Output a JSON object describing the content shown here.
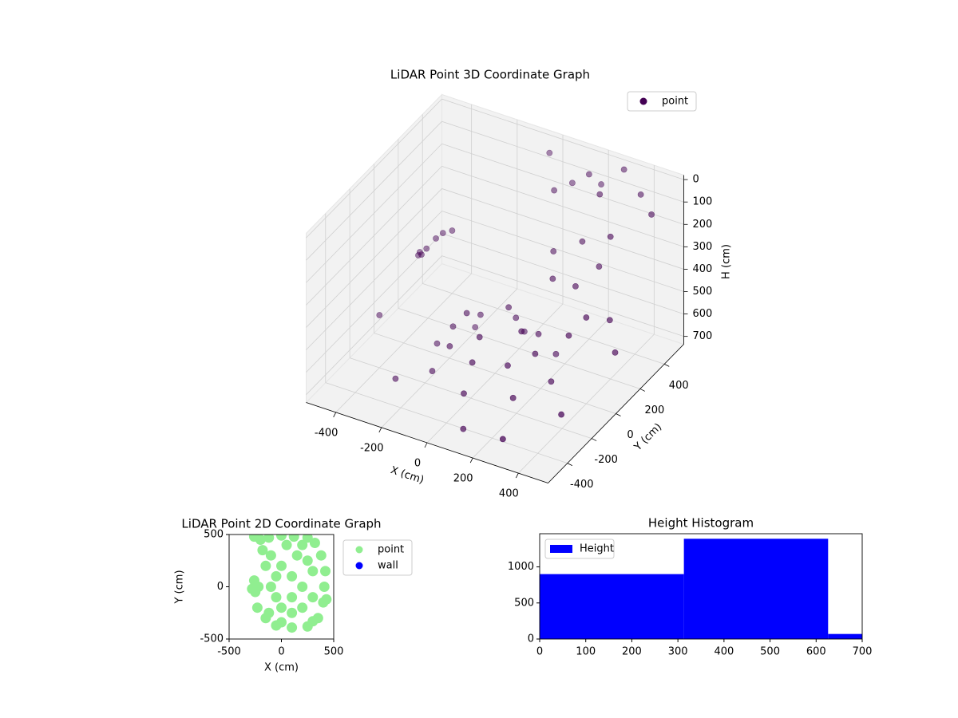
{
  "chart_data": [
    {
      "type": "scatter3d",
      "title": "LiDAR Point 3D Coordinate Graph",
      "xlabel": "X (cm)",
      "ylabel": "Y (cm)",
      "zlabel": "H (cm)",
      "xlim": [
        -530,
        530
      ],
      "ylim": [
        -560,
        560
      ],
      "zlim": [
        -20,
        735
      ],
      "z_inverted": true,
      "xticks": [
        -400,
        -200,
        0,
        200,
        400
      ],
      "yticks": [
        -400,
        -200,
        0,
        200,
        400
      ],
      "zticks": [
        0,
        100,
        200,
        300,
        400,
        500,
        600,
        700
      ],
      "grid": true,
      "legend": "upper right",
      "series": [
        {
          "name": "point",
          "color": "#440154",
          "x": [
            200,
            0,
            300,
            400,
            100,
            200,
            400,
            300,
            100,
            500,
            310,
            237,
            60,
            -117,
            -190,
            -117,
            60,
            237,
            240,
            187,
            60,
            -67,
            -120,
            -67,
            60,
            187,
            180,
            60,
            -60,
            60,
            300,
            350,
            250,
            400,
            150,
            450,
            200,
            350,
            -300,
            -280,
            -320,
            -260,
            -340,
            -290,
            -230,
            300,
            100,
            -250,
            500,
            -400,
            450
          ],
          "y": [
            400,
            450,
            300,
            450,
            300,
            500,
            200,
            500,
            450,
            350,
            -120,
            57,
            130,
            57,
            -120,
            -297,
            -370,
            -297,
            -120,
            7,
            60,
            7,
            -120,
            -247,
            -300,
            -247,
            -120,
            0,
            -120,
            -240,
            100,
            200,
            250,
            0,
            200,
            100,
            100,
            -50,
            0,
            40,
            -30,
            60,
            20,
            -60,
            80,
            -500,
            -450,
            -350,
            50,
            -200,
            -300
          ],
          "z": [
            0,
            0,
            0,
            50,
            50,
            100,
            100,
            0,
            100,
            50,
            600,
            600,
            600,
            600,
            600,
            600,
            600,
            600,
            500,
            500,
            500,
            500,
            500,
            500,
            500,
            500,
            420,
            420,
            420,
            420,
            300,
            250,
            200,
            350,
            250,
            400,
            300,
            420,
            280,
            250,
            300,
            230,
            320,
            270,
            220,
            650,
            700,
            650,
            500,
            500,
            600
          ]
        }
      ]
    },
    {
      "type": "scatter",
      "title": "LiDAR Point 2D Coordinate Graph",
      "xlabel": "X (cm)",
      "ylabel": "Y (cm)",
      "xlim": [
        -500,
        500
      ],
      "ylim": [
        -500,
        500
      ],
      "xticks": [
        -500,
        0,
        500
      ],
      "yticks": [
        -500,
        0,
        500
      ],
      "legend": "outside upper right",
      "series": [
        {
          "name": "point",
          "color": "#90ee90",
          "x": [
            -260,
            -200,
            -120,
            0,
            120,
            250,
            320,
            380,
            420,
            410,
            400,
            350,
            250,
            100,
            -50,
            -150,
            -230,
            -250,
            -220,
            -260,
            -150,
            -180,
            -100,
            0,
            100,
            200,
            300,
            0,
            100,
            200,
            -100,
            -50,
            150,
            250,
            300,
            -50,
            100,
            200,
            50,
            -280,
            430,
            -120,
            0,
            300
          ],
          "y": [
            480,
            450,
            470,
            490,
            480,
            470,
            420,
            300,
            150,
            0,
            -150,
            -300,
            -380,
            -390,
            -370,
            -300,
            -200,
            -50,
            0,
            60,
            200,
            350,
            300,
            200,
            100,
            0,
            -100,
            -200,
            -250,
            -200,
            0,
            100,
            300,
            250,
            150,
            -100,
            -100,
            400,
            400,
            -20,
            -120,
            -250,
            -340,
            -330
          ]
        },
        {
          "name": "wall",
          "color": "#0000ff",
          "x": [],
          "y": []
        }
      ]
    },
    {
      "type": "histogram",
      "title": "Height Histogram",
      "bins": [
        0,
        313,
        626,
        939
      ],
      "counts": [
        900,
        1390,
        70
      ],
      "xlim": [
        0,
        700
      ],
      "ylim": [
        0,
        1460
      ],
      "xticks": [
        0,
        100,
        200,
        300,
        400,
        500,
        600,
        700
      ],
      "yticks": [
        0,
        500,
        1000
      ],
      "legend": "upper left",
      "series": [
        {
          "name": "Height",
          "color": "#0000ff"
        }
      ]
    }
  ]
}
